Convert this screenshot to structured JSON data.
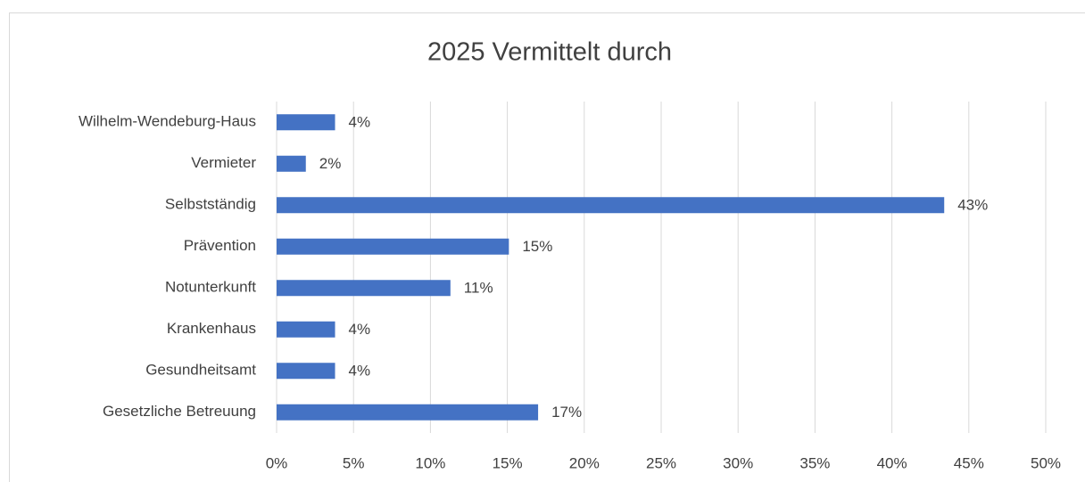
{
  "chart_data": {
    "type": "barh",
    "title": "2025  Vermittelt durch",
    "categories": [
      "Wilhelm-Wendeburg-Haus",
      "Vermieter",
      "Selbstständig",
      "Prävention",
      "Notunterkunft",
      "Krankenhaus",
      "Gesundheitsamt",
      "Gesetzliche Betreuung"
    ],
    "values": [
      3.8,
      1.9,
      43.4,
      15.1,
      11.3,
      3.8,
      3.8,
      17.0
    ],
    "value_labels": [
      "4%",
      "2%",
      "43%",
      "15%",
      "11%",
      "4%",
      "4%",
      "17%"
    ],
    "color": "#4472c4",
    "xlim": [
      0,
      50
    ],
    "xticks": [
      {
        "value": 0,
        "label": "0%"
      },
      {
        "value": 5,
        "label": "5%"
      },
      {
        "value": 10,
        "label": "10%"
      },
      {
        "value": 15,
        "label": "15%"
      },
      {
        "value": 20,
        "label": "20%"
      },
      {
        "value": 25,
        "label": "25%"
      },
      {
        "value": 30,
        "label": "30%"
      },
      {
        "value": 35,
        "label": "35%"
      },
      {
        "value": 40,
        "label": "40%"
      },
      {
        "value": 45,
        "label": "45%"
      },
      {
        "value": 50,
        "label": "50%"
      }
    ],
    "grid": true
  }
}
